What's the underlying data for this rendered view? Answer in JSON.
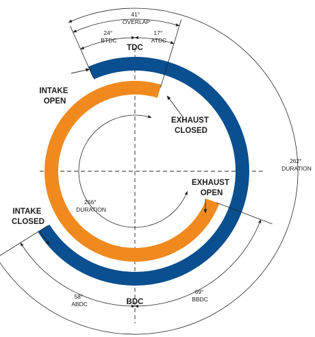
{
  "diagram": {
    "labels": {
      "tdc": "TDC",
      "bdc": "BDC",
      "intake_open": [
        "INTAKE",
        "OPEN"
      ],
      "intake_closed": [
        "INTAKE",
        "CLOSED"
      ],
      "exhaust_open": [
        "EXHAUST",
        "OPEN"
      ],
      "exhaust_closed": [
        "EXHAUST",
        "CLOSED"
      ]
    },
    "overlap": {
      "degrees": "41°",
      "label": "OVERLAP"
    },
    "btdc": {
      "degrees": "24°",
      "label": "BTDC"
    },
    "atdc": {
      "degrees": "17°",
      "label": "ATDC"
    },
    "abdc": {
      "degrees": "58°",
      "label": "ABDC"
    },
    "bbdc": {
      "degrees": "69°",
      "label": "BBDC"
    },
    "intake_duration": {
      "degrees": "262°",
      "label": "DURATION"
    },
    "exhaust_duration": {
      "degrees": "266°",
      "label": "DURATION"
    },
    "colors": {
      "intake": "#0a4f8f",
      "exhaust": "#f08a1f",
      "lines": "#222222"
    }
  }
}
